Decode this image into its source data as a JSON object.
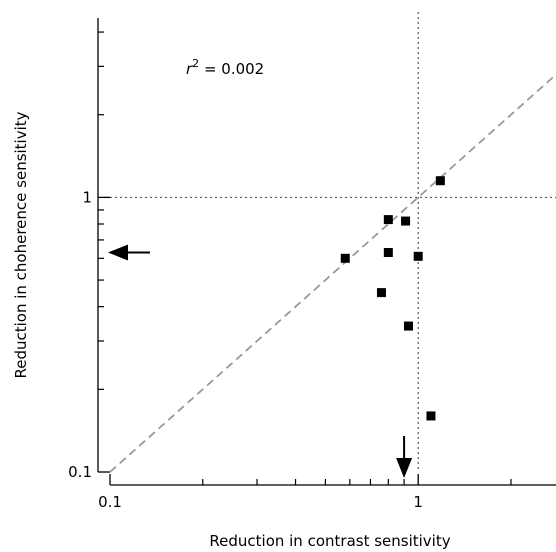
{
  "chart_data": {
    "type": "scatter",
    "xscale": "log",
    "yscale": "log",
    "xlabel": "Reduction in contrast sensitivity",
    "ylabel": "Reduction in choherence sensitivity",
    "xlim": [
      0.1,
      2.8
    ],
    "ylim": [
      0.1,
      4.5
    ],
    "xticks": [
      {
        "value": 0.1,
        "label": "0.1"
      },
      {
        "value": 1,
        "label": "1"
      }
    ],
    "yticks": [
      {
        "value": 0.1,
        "label": "0.1"
      },
      {
        "value": 1,
        "label": "1"
      }
    ],
    "annotation": {
      "base": "r",
      "sup": "2",
      "rest": " = 0.002"
    },
    "reference_lines": {
      "x": 1,
      "y": 1,
      "identity": true
    },
    "arrows": {
      "x_axis_at": 0.9,
      "y_axis_at": 0.63
    },
    "points": [
      {
        "x": 1.18,
        "y": 1.15
      },
      {
        "x": 0.8,
        "y": 0.83
      },
      {
        "x": 0.91,
        "y": 0.82
      },
      {
        "x": 0.8,
        "y": 0.63
      },
      {
        "x": 0.58,
        "y": 0.6
      },
      {
        "x": 1.0,
        "y": 0.61
      },
      {
        "x": 0.76,
        "y": 0.45
      },
      {
        "x": 0.93,
        "y": 0.34
      },
      {
        "x": 1.1,
        "y": 0.16
      }
    ]
  }
}
